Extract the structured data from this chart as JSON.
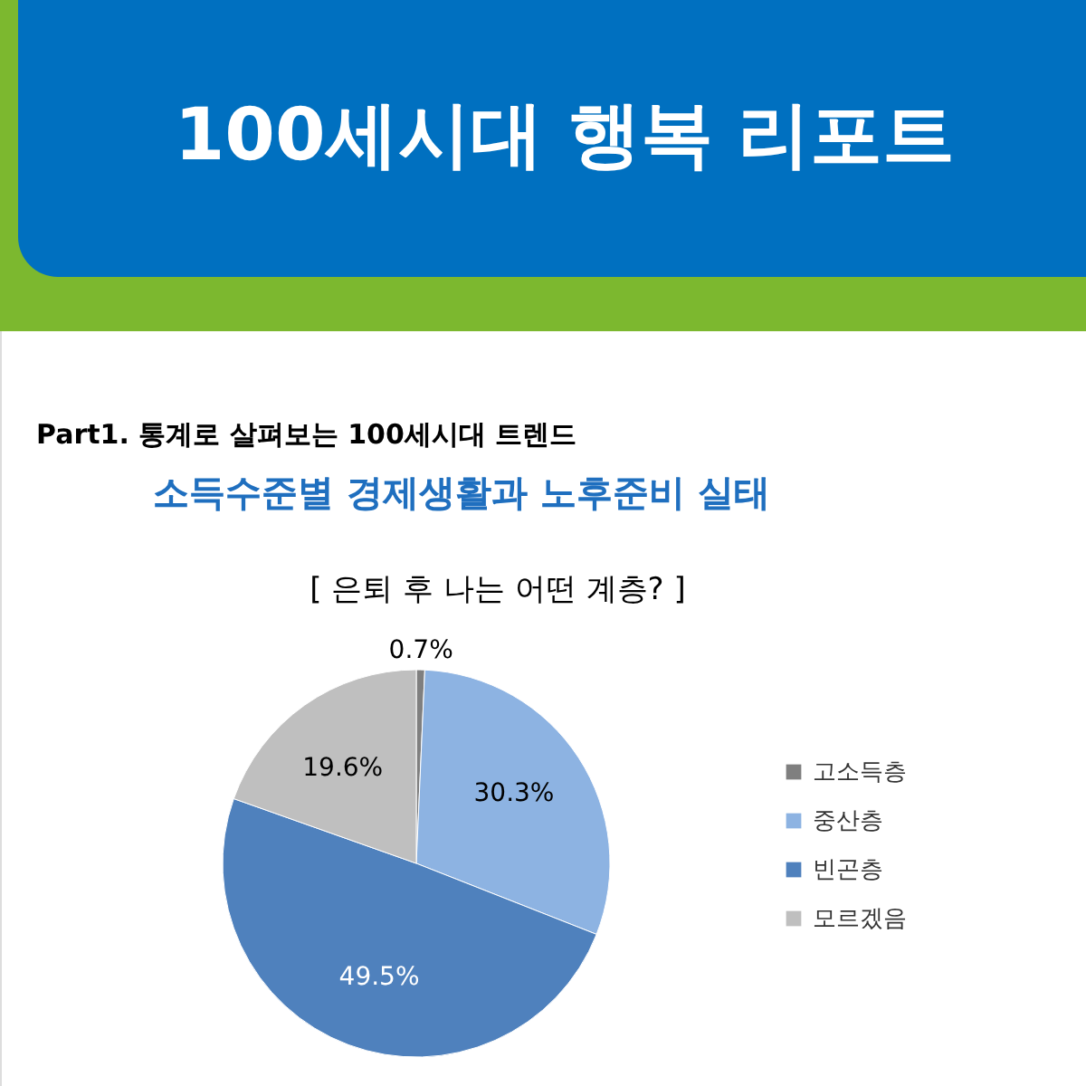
{
  "chart_data": {
    "type": "pie",
    "title": "100세시대 행복 리포트",
    "subtitle": "소득수준별 경제생활과 노후준비 실태",
    "annotations": [
      "Part1. 통계로 살펴보는 100세시대 트렌드",
      "[ 은퇴 후 나는 어떤 계층? ]"
    ],
    "categories": [
      "고소득층",
      "중산층",
      "빈곤층",
      "모르겠음"
    ],
    "values": [
      0.7,
      30.3,
      49.5,
      19.6
    ],
    "colors": [
      "#7f7f7f",
      "#8db3e2",
      "#4f81bd",
      "#bfbfbf"
    ],
    "value_labels": [
      "0.7%",
      "30.3%",
      "49.5%",
      "19.6%"
    ],
    "legend": "right"
  }
}
